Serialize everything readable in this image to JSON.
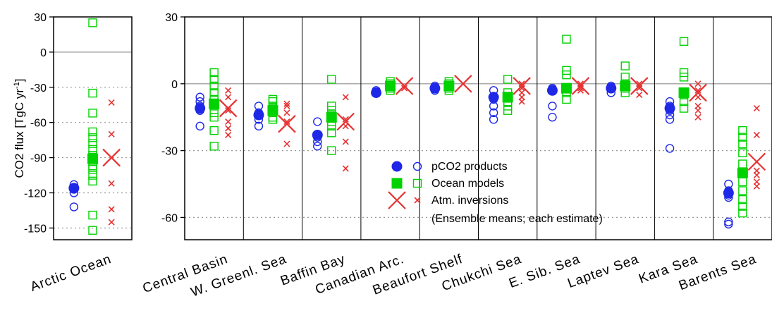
{
  "chart_data": [
    {
      "type": "scatter",
      "ylabel": "CO2 flux [TgC yr⁻¹]",
      "ylabel_main": "CO2 flux [TgC yr",
      "ylabel_sup": "-1",
      "ylabel_end": "]",
      "ylim": [
        -160,
        30
      ],
      "yticks": [
        30,
        0,
        -30,
        -60,
        -90,
        -120,
        -150
      ],
      "categories": [
        "Arctic Ocean"
      ],
      "series": [
        {
          "name": "pCO2 products",
          "means": [
            -116
          ],
          "estimates": [
            [
              -113,
              -117,
              -120,
              -132
            ]
          ]
        },
        {
          "name": "Ocean models",
          "means": [
            -91
          ],
          "estimates": [
            [
              25,
              -35,
              -52,
              -68,
              -73,
              -78,
              -83,
              -88,
              -93,
              -97,
              -100,
              -105,
              -110,
              -139,
              -152
            ]
          ]
        },
        {
          "name": "Atm. inversions",
          "means": [
            -90
          ],
          "estimates": [
            [
              -43,
              -70,
              -112,
              -134,
              -145
            ]
          ]
        }
      ]
    },
    {
      "type": "scatter",
      "ylim": [
        -70,
        30
      ],
      "yticks": [
        30,
        0,
        -30,
        -60
      ],
      "categories": [
        "Central Basin",
        "W. Greenl. Sea",
        "Baffin Bay",
        "Canadian Arc.",
        "Beaufort Shelf",
        "Chukchi Sea",
        "E. Sib. Sea",
        "Laptev Sea",
        "Kara Sea",
        "Barents Sea"
      ],
      "series": [
        {
          "name": "pCO2 products",
          "means": [
            -11,
            -14,
            -23,
            -4,
            -2,
            -6,
            -3,
            -2,
            -11,
            -49
          ],
          "estimates": [
            [
              -6,
              -8,
              -10,
              -12,
              -19
            ],
            [
              -10,
              -13,
              -16,
              -19
            ],
            [
              -17,
              -24,
              -26,
              -28
            ],
            [
              -3,
              -4
            ],
            [
              -1,
              -3
            ],
            [
              -3,
              -7,
              -10,
              -13,
              -16
            ],
            [
              -2,
              -3,
              -10,
              -15
            ],
            [
              -1,
              -4
            ],
            [
              -8,
              -10,
              -12,
              -14,
              -16,
              -29
            ],
            [
              -45,
              -48,
              -50,
              -51,
              -62,
              -63
            ]
          ]
        },
        {
          "name": "Ocean models",
          "means": [
            -9,
            -12,
            -15,
            -1,
            -1,
            -6,
            -2,
            -1,
            -4,
            -40
          ],
          "estimates": [
            [
              5,
              2,
              -1,
              -4,
              -7,
              -10,
              -13,
              -15,
              -21,
              -28
            ],
            [
              -7,
              -8,
              -10,
              -11,
              -13,
              -15,
              -16
            ],
            [
              2,
              -10,
              -12,
              -14,
              -17,
              -19,
              -22,
              -30
            ],
            [
              1,
              0,
              -1,
              -2,
              -3
            ],
            [
              1,
              0,
              -1,
              -2,
              -3
            ],
            [
              2,
              -4,
              -6,
              -8,
              -10,
              -12
            ],
            [
              20,
              6,
              4,
              -2,
              -4,
              -7
            ],
            [
              8,
              3,
              0,
              -2,
              -4
            ],
            [
              19,
              5,
              3,
              -5,
              -8,
              -11
            ],
            [
              -21,
              -24,
              -27,
              -31,
              -36,
              -40,
              -44,
              -48,
              -52,
              -55,
              -58
            ]
          ]
        },
        {
          "name": "Atm. inversions",
          "means": [
            -11,
            -18,
            -17,
            -1,
            0,
            -1,
            -1,
            -1,
            -4,
            -35
          ],
          "estimates": [
            [
              -3,
              -6,
              -12,
              -17,
              -20,
              -23
            ],
            [
              -9,
              -10,
              -13,
              -17,
              -27
            ],
            [
              -6,
              -16,
              -17,
              -19,
              -26,
              -38
            ],
            [
              -1,
              -2
            ],
            [
              0
            ],
            [
              0,
              -2,
              -4,
              -6,
              -8
            ],
            [
              0,
              -2,
              -3
            ],
            [
              0,
              -2,
              -5
            ],
            [
              0,
              -3,
              -6,
              -10,
              -12,
              -15
            ],
            [
              -11,
              -23,
              -39,
              -41,
              -44,
              -46
            ]
          ]
        }
      ]
    }
  ],
  "legend": {
    "items": [
      {
        "label": "pCO2 products",
        "color": "#1e28e6",
        "mean_marker": "filled-circle",
        "estimate_marker": "open-circle"
      },
      {
        "label": "Ocean models",
        "color": "#00d200",
        "mean_marker": "filled-square",
        "estimate_marker": "open-square"
      },
      {
        "label": "Atm. inversions",
        "color": "#e63232",
        "mean_marker": "large-x",
        "estimate_marker": "small-x"
      }
    ],
    "note": "(Ensemble means; each estimate)",
    "placement": "center"
  },
  "colors": {
    "pco2": "#1e28e6",
    "ocean": "#00d200",
    "atm": "#e63232",
    "zero_line": "#aaaaaa",
    "gridline": "#999999"
  }
}
